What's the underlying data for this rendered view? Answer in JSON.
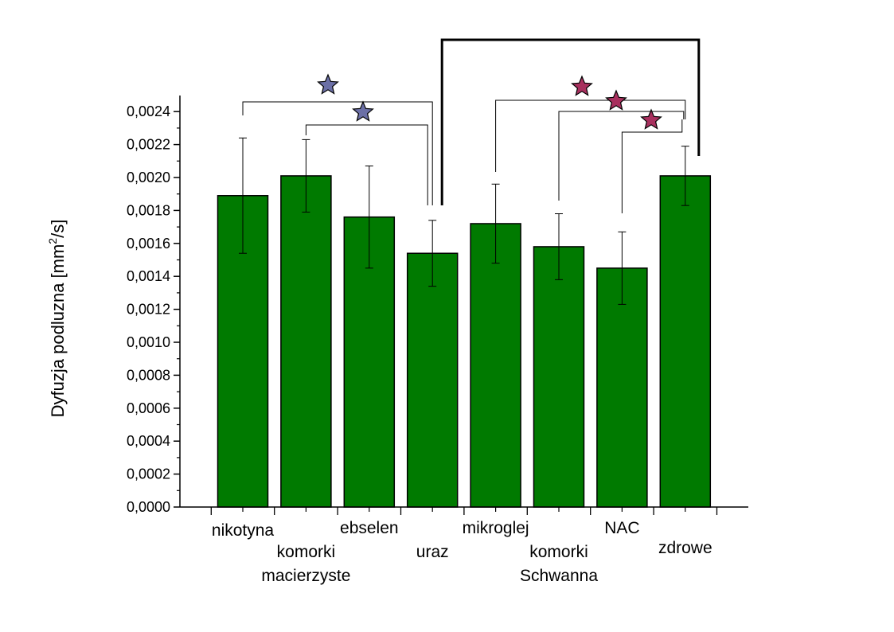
{
  "chart_data": {
    "type": "bar",
    "title": "",
    "ylabel": {
      "prefix": "Dyfuzja podluzna [mm",
      "sup": "2",
      "suffix": "/s]"
    },
    "xlabel": "",
    "ylim": [
      0,
      0.0025
    ],
    "yticks": [
      "0,0000",
      "0,0002",
      "0,0004",
      "0,0006",
      "0,0008",
      "0,0010",
      "0,0012",
      "0,0014",
      "0,0016",
      "0,0018",
      "0,0020",
      "0,0022",
      "0,0024"
    ],
    "categories": [
      [
        "nikotyna"
      ],
      [
        "komorki",
        "macierzyste"
      ],
      [
        "ebselen"
      ],
      [
        "uraz"
      ],
      [
        "mikroglej"
      ],
      [
        "komorki",
        "Schwanna"
      ],
      [
        "NAC"
      ],
      [
        "zdrowe"
      ]
    ],
    "values": [
      0.00189,
      0.00201,
      0.00176,
      0.00154,
      0.00172,
      0.00158,
      0.00145,
      0.00201
    ],
    "errors": [
      0.00035,
      0.00022,
      0.00031,
      0.0002,
      0.00024,
      0.0002,
      0.00022,
      0.00018
    ],
    "bar_color": "#007a00",
    "significance": [
      {
        "from": 0,
        "to": 3,
        "star_color": "#6b6fa6"
      },
      {
        "from": 1,
        "to": 3,
        "star_color": "#6b6fa6"
      },
      {
        "from": 4,
        "to": 7,
        "star_color": "#a8305e"
      },
      {
        "from": 5,
        "to": 7,
        "star_color": "#a8305e"
      },
      {
        "from": 6,
        "to": 7,
        "star_color": "#a8305e"
      },
      {
        "from": 3,
        "to": 7,
        "bracket": "thick"
      }
    ],
    "grid": false,
    "legend": "none"
  }
}
